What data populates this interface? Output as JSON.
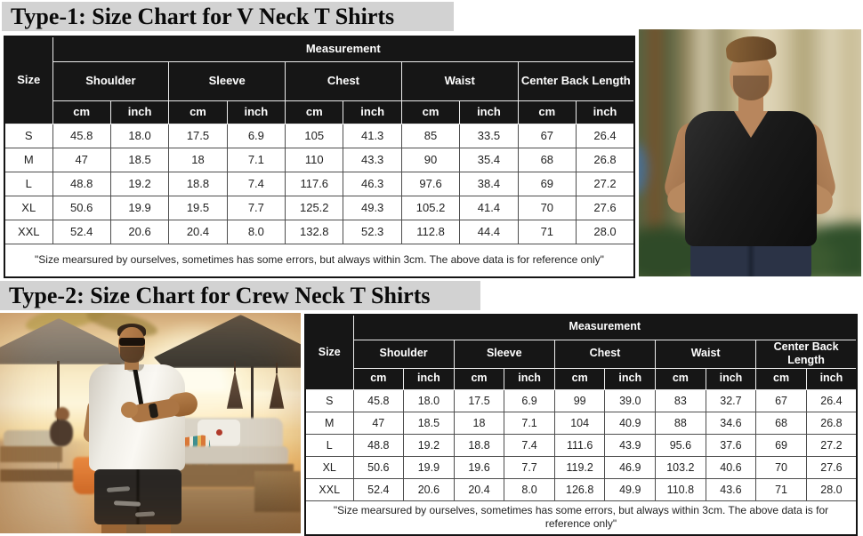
{
  "titles": {
    "type1": "Type-1: Size Chart for V Neck T Shirts",
    "type2": "Type-2: Size Chart for Crew Neck T Shirts"
  },
  "colors": {
    "title_bg": "#d2d2d2",
    "table_header_bg": "#161616",
    "table_header_text": "#ffffff",
    "vneck_shirt": "#1a1a1a",
    "crew_shirt": "#f3f1ec"
  },
  "photos": {
    "vneck": {
      "alt": "man wearing black v-neck t-shirt outdoors"
    },
    "crew": {
      "alt": "man wearing white crew neck t-shirt at sunset beach resort"
    }
  },
  "tables": [
    {
      "size_label": "Size",
      "measurement_label": "Measurement",
      "groups": [
        "Shoulder",
        "Sleeve",
        "Chest",
        "Waist",
        "Center Back Length"
      ],
      "units": [
        "cm",
        "inch"
      ],
      "rows": [
        {
          "size": "S",
          "values": [
            "45.8",
            "18.0",
            "17.5",
            "6.9",
            "105",
            "41.3",
            "85",
            "33.5",
            "67",
            "26.4"
          ]
        },
        {
          "size": "M",
          "values": [
            "47",
            "18.5",
            "18",
            "7.1",
            "110",
            "43.3",
            "90",
            "35.4",
            "68",
            "26.8"
          ]
        },
        {
          "size": "L",
          "values": [
            "48.8",
            "19.2",
            "18.8",
            "7.4",
            "117.6",
            "46.3",
            "97.6",
            "38.4",
            "69",
            "27.2"
          ]
        },
        {
          "size": "XL",
          "values": [
            "50.6",
            "19.9",
            "19.5",
            "7.7",
            "125.2",
            "49.3",
            "105.2",
            "41.4",
            "70",
            "27.6"
          ]
        },
        {
          "size": "XXL",
          "values": [
            "52.4",
            "20.6",
            "20.4",
            "8.0",
            "132.8",
            "52.3",
            "112.8",
            "44.4",
            "71",
            "28.0"
          ]
        }
      ],
      "footnote": "\"Size mearsured by ourselves, sometimes has some errors, but always within 3cm. The above data is for reference only\""
    },
    {
      "size_label": "Size",
      "measurement_label": "Measurement",
      "groups": [
        "Shoulder",
        "Sleeve",
        "Chest",
        "Waist",
        "Center Back Length"
      ],
      "units": [
        "cm",
        "inch"
      ],
      "rows": [
        {
          "size": "S",
          "values": [
            "45.8",
            "18.0",
            "17.5",
            "6.9",
            "99",
            "39.0",
            "83",
            "32.7",
            "67",
            "26.4"
          ]
        },
        {
          "size": "M",
          "values": [
            "47",
            "18.5",
            "18",
            "7.1",
            "104",
            "40.9",
            "88",
            "34.6",
            "68",
            "26.8"
          ]
        },
        {
          "size": "L",
          "values": [
            "48.8",
            "19.2",
            "18.8",
            "7.4",
            "111.6",
            "43.9",
            "95.6",
            "37.6",
            "69",
            "27.2"
          ]
        },
        {
          "size": "XL",
          "values": [
            "50.6",
            "19.9",
            "19.6",
            "7.7",
            "119.2",
            "46.9",
            "103.2",
            "40.6",
            "70",
            "27.6"
          ]
        },
        {
          "size": "XXL",
          "values": [
            "52.4",
            "20.6",
            "20.4",
            "8.0",
            "126.8",
            "49.9",
            "110.8",
            "43.6",
            "71",
            "28.0"
          ]
        }
      ],
      "footnote": "\"Size mearsured by ourselves, sometimes has some errors, but always within 3cm. The above data is for reference only\""
    }
  ]
}
